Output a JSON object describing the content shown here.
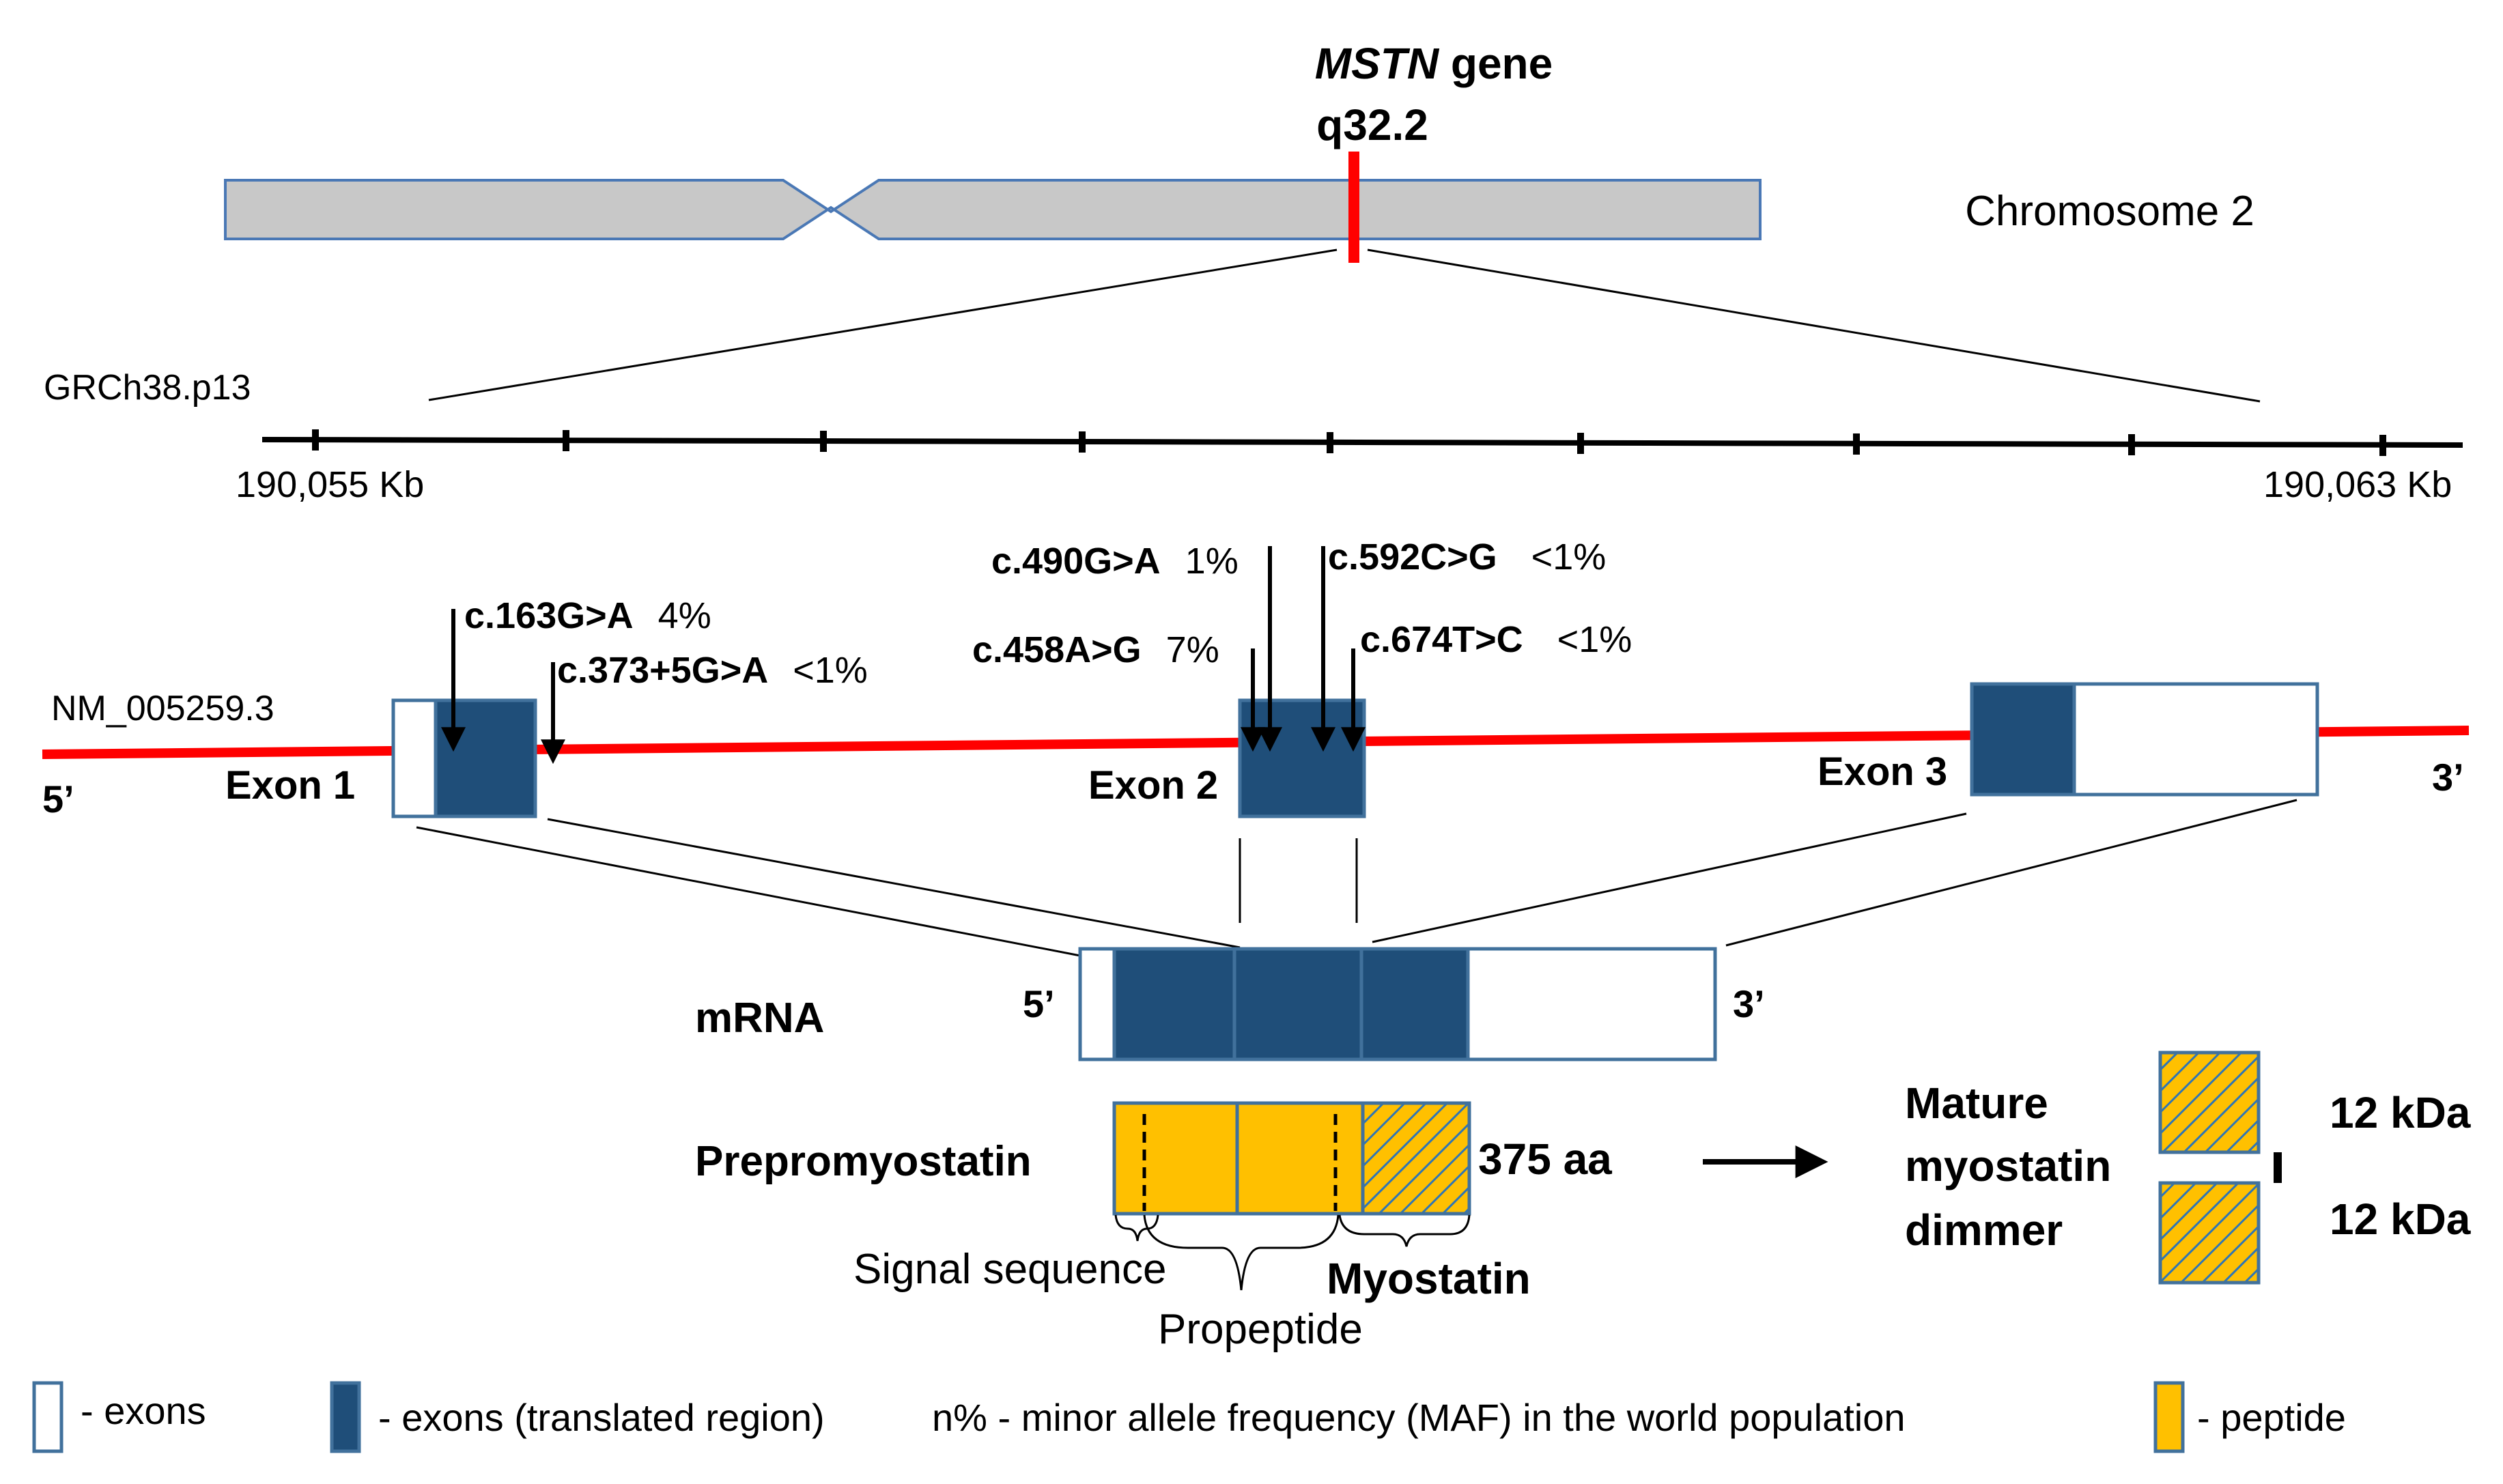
{
  "colors": {
    "chromosome_fill": "#c8c8c8",
    "chromosome_stroke": "#4a78b5",
    "locus_red": "#ff0000",
    "exon_dark": "#1f4e79",
    "exon_outline": "#41719c",
    "peptide": "#ffc000",
    "hatch_line": "#2e75b6"
  },
  "chromosome": {
    "locus_gene": "MSTN",
    "locus_gene_suffix": " gene",
    "locus_band": "q32.2",
    "name": "Chromosome 2"
  },
  "scale": {
    "assembly": "GRCh38.p13",
    "start": "190,055 Kb",
    "end": "190,063 Kb"
  },
  "gene": {
    "transcript": "NM_005259.3",
    "five_prime": "5’",
    "three_prime": "3’",
    "exons": [
      "Exon 1",
      "Exon 2",
      "Exon 3"
    ]
  },
  "variants": [
    {
      "name": "c.163G>A",
      "maf": "4%"
    },
    {
      "name": "c.373+5G>A",
      "maf": "<1%"
    },
    {
      "name": "c.490G>A",
      "maf": "1%"
    },
    {
      "name": "c.458A>G",
      "maf": "7%"
    },
    {
      "name": "c.592C>G",
      "maf": "<1%"
    },
    {
      "name": "c.674T>C",
      "maf": "<1%"
    }
  ],
  "mrna": {
    "label": "mRNA",
    "five_prime": "5’",
    "three_prime": "3’"
  },
  "protein": {
    "label": "Prepromyostatin",
    "length": "375 aa",
    "signal": "Signal sequence",
    "propeptide": "Propeptide",
    "myostatin": "Myostatin"
  },
  "mature": {
    "line1": "Mature",
    "line2": "myostatin",
    "line3": "dimmer",
    "top_size": "12 kDa",
    "bottom_size": "12 kDa"
  },
  "legend": {
    "exons": "- exons",
    "translated": "- exons (translated region)",
    "maf": "n% - minor allele frequency (MAF) in the world population",
    "peptide": "- peptide"
  }
}
